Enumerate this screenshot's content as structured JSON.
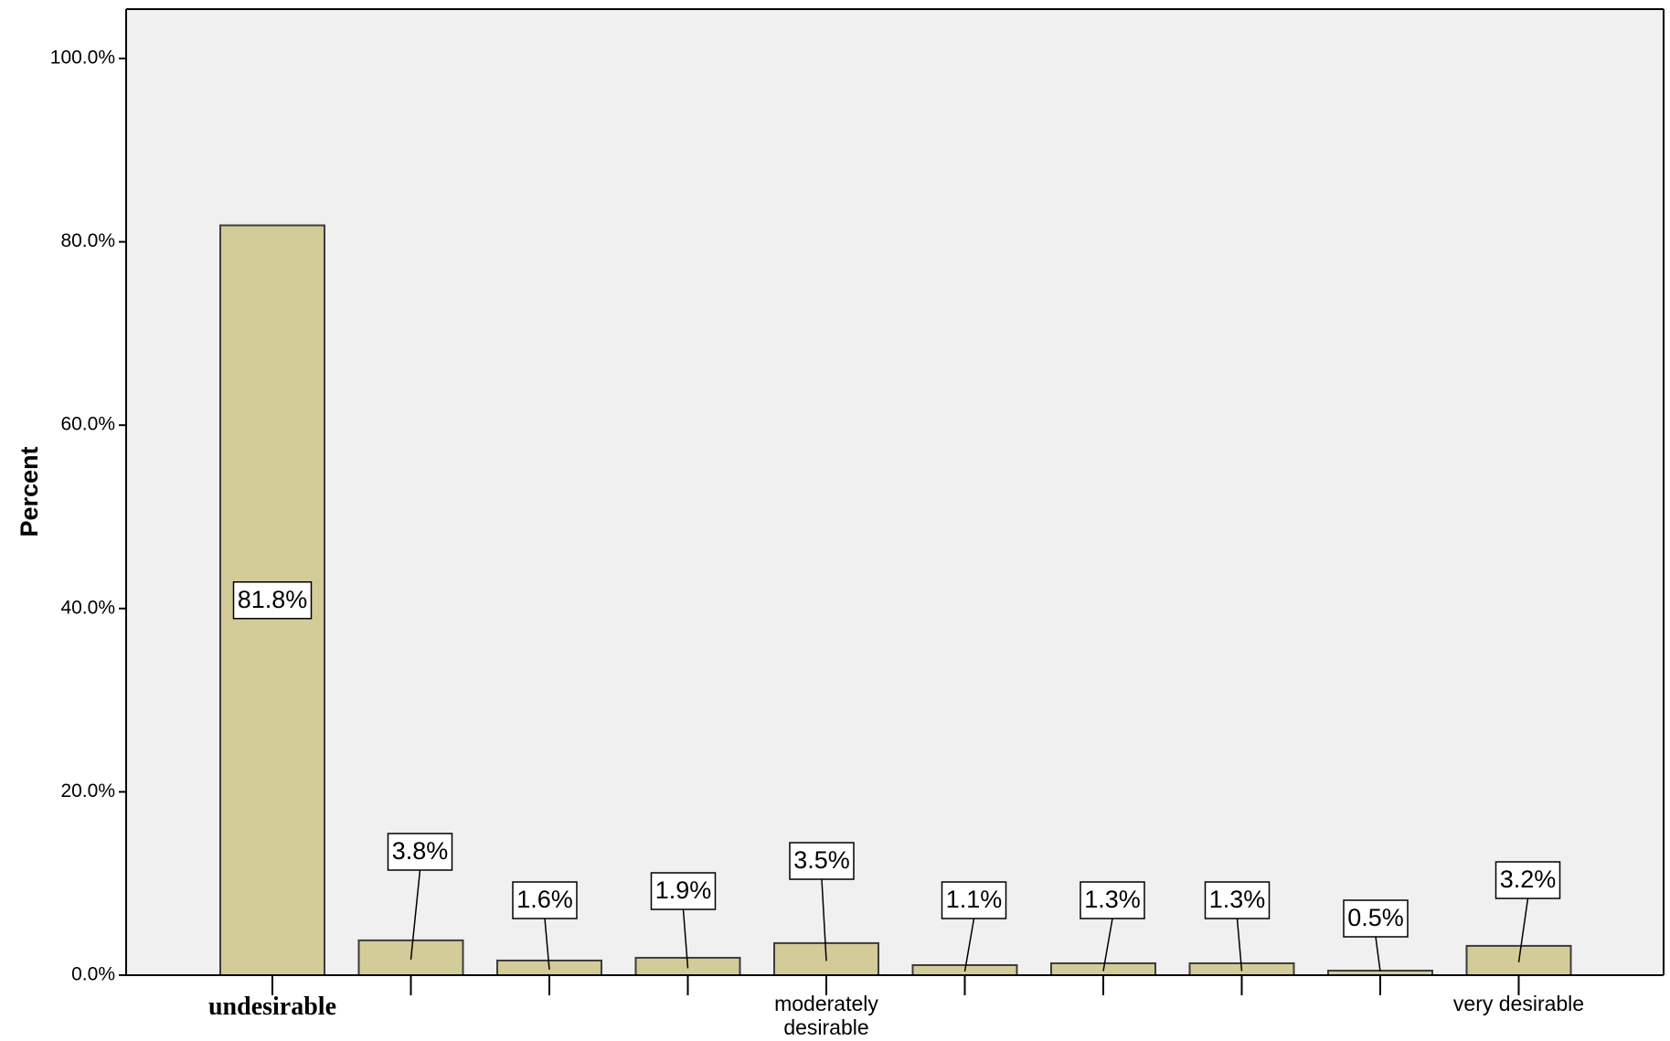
{
  "chart_data": {
    "type": "bar",
    "ylabel": "Percent",
    "xlabel": "",
    "ylim": [
      0,
      105
    ],
    "y_ticks": [
      "0.0%",
      "20.0%",
      "40.0%",
      "60.0%",
      "80.0%",
      "100.0%"
    ],
    "y_tick_values": [
      0,
      20,
      40,
      60,
      80,
      100
    ],
    "categories": [
      "undesirable",
      "",
      "",
      "",
      "moderately desirable",
      "",
      "",
      "",
      "",
      "very desirable"
    ],
    "values": [
      81.8,
      3.8,
      1.6,
      1.9,
      3.5,
      1.1,
      1.3,
      1.3,
      0.5,
      3.2
    ],
    "data_labels": [
      "81.8%",
      "3.8%",
      "1.6%",
      "1.9%",
      "3.5%",
      "1.1%",
      "1.3%",
      "1.3%",
      "0.5%",
      "3.2%"
    ],
    "grid": false,
    "colors": {
      "bar_fill": "#d3cc99",
      "bar_stroke": "#3c3c3c",
      "plot_bg": "#f0f0f0",
      "page_bg": "#ffffff"
    }
  }
}
